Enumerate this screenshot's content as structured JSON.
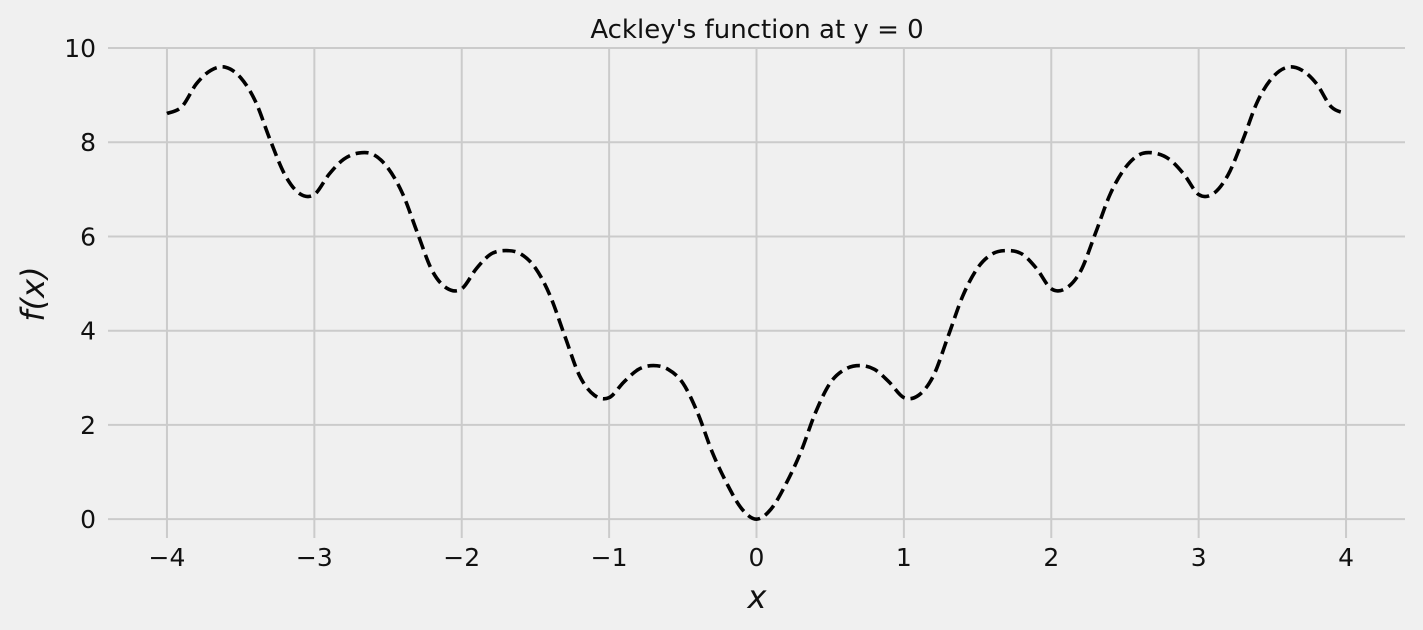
{
  "chart_data": {
    "type": "line",
    "title": "Ackley's function at y = 0",
    "xlabel": "x",
    "ylabel": "f(x)",
    "xlim": [
      -4.4,
      4.4
    ],
    "ylim": [
      -0.4,
      10.0
    ],
    "xticks": [
      {
        "value": -4,
        "label": "−4"
      },
      {
        "value": -3,
        "label": "−3"
      },
      {
        "value": -2,
        "label": "−2"
      },
      {
        "value": -1,
        "label": "−1"
      },
      {
        "value": 0,
        "label": "0"
      },
      {
        "value": 1,
        "label": "1"
      },
      {
        "value": 2,
        "label": "2"
      },
      {
        "value": 3,
        "label": "3"
      },
      {
        "value": 4,
        "label": "4"
      }
    ],
    "yticks": [
      {
        "value": 0,
        "label": "0"
      },
      {
        "value": 2,
        "label": "2"
      },
      {
        "value": 4,
        "label": "4"
      },
      {
        "value": 6,
        "label": "6"
      },
      {
        "value": 8,
        "label": "8"
      },
      {
        "value": 10,
        "label": "10"
      }
    ],
    "grid": true,
    "background": "#f0f0f0",
    "grid_color": "#cbcbcb",
    "series": [
      {
        "line_color": "#000000",
        "line_style": "dashed",
        "x": [
          -4.0,
          -3.9,
          -3.8,
          -3.7,
          -3.6,
          -3.5,
          -3.4,
          -3.3,
          -3.2,
          -3.1,
          -3.0,
          -2.9,
          -2.8,
          -2.7,
          -2.6,
          -2.5,
          -2.4,
          -2.3,
          -2.2,
          -2.1,
          -2.0,
          -1.9,
          -1.8,
          -1.7,
          -1.6,
          -1.5,
          -1.4,
          -1.3,
          -1.2,
          -1.1,
          -1.0,
          -0.9,
          -0.8,
          -0.7,
          -0.6,
          -0.5,
          -0.4,
          -0.3,
          -0.2,
          -0.1,
          0.0,
          0.1,
          0.2,
          0.3,
          0.4,
          0.5,
          0.6,
          0.7,
          0.8,
          0.9,
          1.0,
          1.1,
          1.2,
          1.3,
          1.4,
          1.5,
          1.6,
          1.7,
          1.8,
          1.9,
          2.0,
          2.1,
          2.2,
          2.3,
          2.4,
          2.5,
          2.6,
          2.7,
          2.8,
          2.9,
          3.0,
          3.1,
          3.2,
          3.3,
          3.4,
          3.5,
          3.6,
          3.7,
          3.8,
          3.9,
          4.0
        ],
        "y": [
          8.61,
          8.75,
          9.24,
          9.53,
          9.59,
          9.37,
          8.87,
          8.05,
          7.31,
          6.91,
          6.89,
          7.32,
          7.64,
          7.77,
          7.74,
          7.45,
          6.9,
          6.07,
          5.27,
          4.9,
          4.89,
          5.32,
          5.63,
          5.7,
          5.63,
          5.33,
          4.74,
          3.88,
          3.04,
          2.63,
          2.58,
          2.91,
          3.18,
          3.26,
          3.18,
          2.89,
          2.26,
          1.42,
          0.75,
          0.22,
          0.0,
          0.22,
          0.75,
          1.42,
          2.26,
          2.89,
          3.18,
          3.26,
          3.18,
          2.91,
          2.58,
          2.63,
          3.04,
          3.88,
          4.74,
          5.33,
          5.63,
          5.7,
          5.63,
          5.32,
          4.89,
          4.9,
          5.27,
          6.07,
          6.9,
          7.45,
          7.74,
          7.77,
          7.64,
          7.32,
          6.89,
          6.91,
          7.31,
          8.05,
          8.87,
          9.37,
          9.59,
          9.53,
          9.24,
          8.75,
          8.61
        ]
      }
    ]
  }
}
